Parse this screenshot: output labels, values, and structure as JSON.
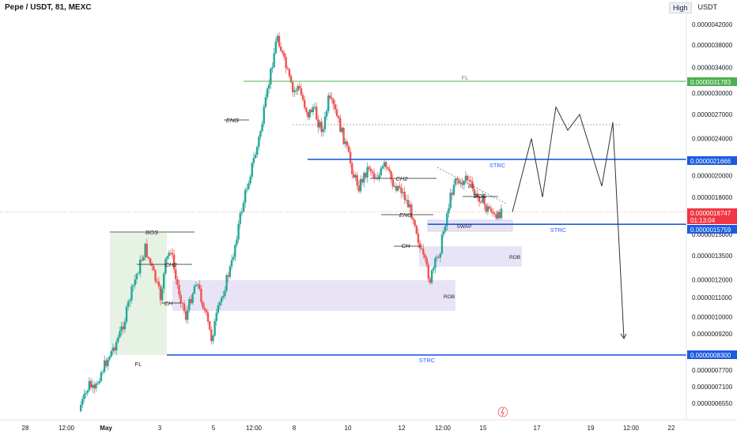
{
  "header": {
    "title": "Pepe / USDT, 81, MEXC",
    "price_mode": "High",
    "currency": "USDT"
  },
  "colors": {
    "up": "#26a69a",
    "down": "#ef5350",
    "level_line": "#1c5be0",
    "fl_line": "#4caf50",
    "zone_fill": "#e8e4f6",
    "fl_zone_fill": "#e6f2e3",
    "text_blue": "#2962ff",
    "dark_text": "#131722"
  },
  "chart_data": {
    "type": "candlestick",
    "symbol": "Pepe / USDT",
    "timeframe": "81",
    "exchange": "MEXC",
    "y_axis": {
      "scale": "log",
      "range": [
        6.3e-06,
        4.5e-06
      ],
      "ticks": [
        "0.0000042000",
        "0.0000038000",
        "0.0000034000",
        "0.0000030000",
        "0.0000027000",
        "0.0000024000",
        "0.0000020000",
        "0.0000018000",
        "0.0000015000",
        "0.0000013500",
        "0.0000012000",
        "0.0000011000",
        "0.0000010000",
        "0.0000009200",
        "0.0000007700",
        "0.0000007100",
        "0.0000006550"
      ]
    },
    "x_axis": {
      "ticks": [
        "28",
        "12:00",
        "May",
        "3",
        "5",
        "12:00",
        "8",
        "10",
        "12",
        "12:00",
        "15",
        "17",
        "19",
        "12:00",
        "22"
      ]
    },
    "price_labels": [
      {
        "value": "0.0000031783",
        "style": "green"
      },
      {
        "value": "0.0000021666",
        "style": "blue"
      },
      {
        "value": "0.0000016747",
        "style": "red"
      },
      {
        "value": "01:13:04",
        "style": "red"
      },
      {
        "value": "0.0000015759",
        "style": "blue"
      },
      {
        "value": "0.0000008300",
        "style": "blue"
      }
    ],
    "annotations": [
      "FL",
      "STRC",
      "STRC",
      "STRC",
      "BOS",
      "CH2",
      "CH",
      "FL",
      "ROB",
      "ROB",
      "ENG",
      "CH2",
      "ENG",
      "CH",
      "SWAP",
      "BOS"
    ],
    "path": {
      "close": [
        6.4e-07,
        6.7e-07,
        7.2e-07,
        6.9e-07,
        7.5e-07,
        7.9e-07,
        8.3e-07,
        8.7e-07,
        9.2e-07,
        9.9e-07,
        1.1e-06,
        1.2e-06,
        1.3e-06,
        1.4e-06,
        1.3e-06,
        1.2e-06,
        1.1e-06,
        1.3e-06,
        1.4e-06,
        1.2e-06,
        1.1e-06,
        1e-06,
        1.1e-06,
        1.2e-06,
        1.1e-06,
        1e-06,
        9e-07,
        1e-06,
        1.1e-06,
        1.2e-06,
        1.3e-06,
        1.5e-06,
        1.7e-06,
        1.9e-06,
        2.1e-06,
        2.3e-06,
        2.6e-06,
        3e-06,
        3.5e-06,
        4e-06,
        3.6e-06,
        3.3e-06,
        3e-06,
        3.1e-06,
        2.9e-06,
        2.7e-06,
        2.8e-06,
        2.6e-06,
        2.5e-06,
        2.9e-06,
        2.8e-06,
        2.6e-06,
        2.4e-06,
        2.2e-06,
        2e-06,
        1.9e-06,
        2e-06,
        2.1e-06,
        2e-06,
        2e-06,
        2.1e-06,
        2e-06,
        1.9e-06,
        1.9e-06,
        1.8e-06,
        1.7e-06,
        1.6e-06,
        1.4e-06,
        1.3e-06,
        1.2e-06,
        1.3e-06,
        1.4e-06,
        1.6e-06,
        1.8e-06,
        2e-06,
        1.9e-06,
        2e-06,
        1.9e-06,
        1.8e-06,
        1.8e-06,
        1.7e-06,
        1.7e-06,
        1.6e-06,
        1.7e-06
      ]
    },
    "projection": [
      1.6747e-06,
      2.4e-06,
      1.8e-06,
      2.8e-06,
      2.5e-06,
      2.7e-06,
      1.9e-06,
      2.6e-06,
      9e-07
    ]
  }
}
